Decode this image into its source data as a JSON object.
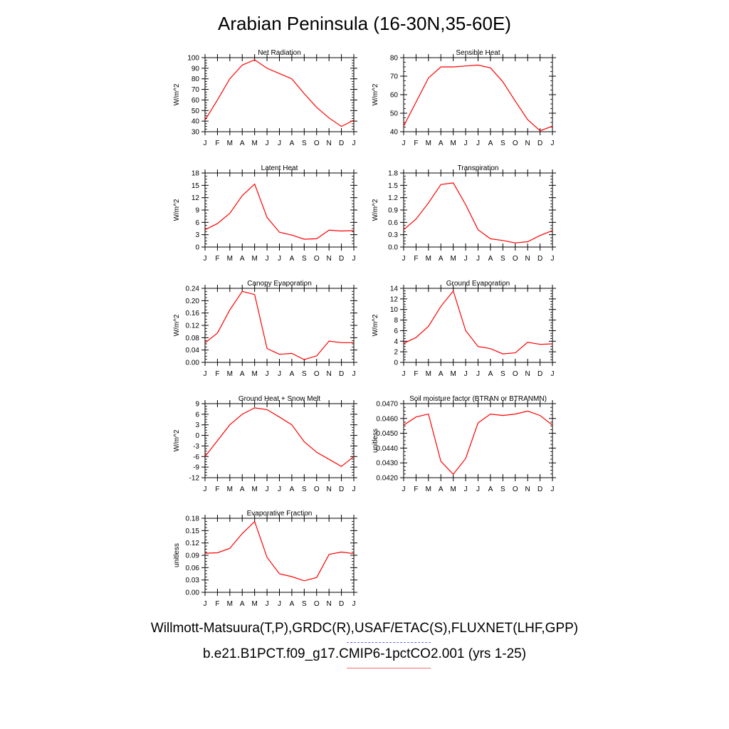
{
  "title": "Arabian Peninsula (16-30N,35-60E)",
  "footer": {
    "observations": "Willmott-Matsuura(T,P),GRDC(R),USAF/ETAC(S),FLUXNET(LHF,GPP)",
    "case": "b.e21.B1PCT.f09_g17.CMIP6-1pctCO2.001 (yrs 1-25)"
  },
  "colors": {
    "line": "#ff0000",
    "obs_legend": "#6a6aff",
    "case_legend": "#ff6a6a"
  },
  "chart_data": [
    {
      "type": "line",
      "title": "Net Radiation",
      "ylabel": "W/m^2",
      "categories": [
        "J",
        "F",
        "M",
        "A",
        "M",
        "J",
        "J",
        "A",
        "S",
        "O",
        "N",
        "D",
        "J"
      ],
      "ylim": [
        30,
        100
      ],
      "yticks": [
        "30",
        "40",
        "50",
        "60",
        "70",
        "80",
        "90",
        "100"
      ],
      "values": [
        41,
        60,
        80,
        93,
        98,
        90,
        85,
        80,
        66,
        53,
        43,
        35,
        41
      ]
    },
    {
      "type": "line",
      "title": "Sensible Heat",
      "ylabel": "W/m^2",
      "categories": [
        "J",
        "F",
        "M",
        "A",
        "M",
        "J",
        "J",
        "A",
        "S",
        "O",
        "N",
        "D",
        "J"
      ],
      "ylim": [
        40,
        80
      ],
      "yticks": [
        "40",
        "50",
        "60",
        "70",
        "80"
      ],
      "values": [
        43,
        56,
        69,
        75,
        75,
        75.5,
        76,
        74.5,
        67,
        56.5,
        46.5,
        40.5,
        43
      ]
    },
    {
      "type": "line",
      "title": "Latent Heat",
      "ylabel": "W/m^2",
      "categories": [
        "J",
        "F",
        "M",
        "A",
        "M",
        "J",
        "J",
        "A",
        "S",
        "O",
        "N",
        "D",
        "J"
      ],
      "ylim": [
        0,
        18
      ],
      "yticks": [
        "0",
        "3",
        "6",
        "9",
        "12",
        "15",
        "18"
      ],
      "values": [
        4.2,
        5.7,
        8.2,
        12.5,
        15.3,
        7.2,
        3.6,
        2.9,
        1.9,
        2.0,
        4.1,
        3.9,
        4.0
      ]
    },
    {
      "type": "line",
      "title": "Transpiration",
      "ylabel": "W/m^2",
      "categories": [
        "J",
        "F",
        "M",
        "A",
        "M",
        "J",
        "J",
        "A",
        "S",
        "O",
        "N",
        "D",
        "J"
      ],
      "ylim": [
        0,
        1.8
      ],
      "yticks": [
        "0.0",
        "0.3",
        "0.6",
        "0.9",
        "1.2",
        "1.5",
        "1.8"
      ],
      "values": [
        0.42,
        0.68,
        1.07,
        1.52,
        1.56,
        1.03,
        0.42,
        0.2,
        0.16,
        0.1,
        0.13,
        0.28,
        0.4
      ]
    },
    {
      "type": "line",
      "title": "Canopy Evaporation",
      "ylabel": "W/m^2",
      "categories": [
        "J",
        "F",
        "M",
        "A",
        "M",
        "J",
        "J",
        "A",
        "S",
        "O",
        "N",
        "D",
        "J"
      ],
      "ylim": [
        0,
        0.24
      ],
      "yticks": [
        "0.00",
        "0.04",
        "0.08",
        "0.12",
        "0.16",
        "0.20",
        "0.24"
      ],
      "values": [
        0.063,
        0.095,
        0.17,
        0.23,
        0.22,
        0.045,
        0.026,
        0.029,
        0.009,
        0.021,
        0.069,
        0.064,
        0.064
      ]
    },
    {
      "type": "line",
      "title": "Ground Evaporation",
      "ylabel": "W/m^2",
      "categories": [
        "J",
        "F",
        "M",
        "A",
        "M",
        "J",
        "J",
        "A",
        "S",
        "O",
        "N",
        "D",
        "J"
      ],
      "ylim": [
        0,
        14
      ],
      "yticks": [
        "0",
        "2",
        "4",
        "6",
        "8",
        "10",
        "12",
        "14"
      ],
      "values": [
        3.6,
        4.7,
        6.8,
        10.6,
        13.5,
        6.0,
        3.0,
        2.6,
        1.6,
        1.8,
        3.8,
        3.4,
        3.5
      ]
    },
    {
      "type": "line",
      "title": "Ground Heat + Snow Melt",
      "ylabel": "W/m^2",
      "categories": [
        "J",
        "F",
        "M",
        "A",
        "M",
        "J",
        "J",
        "A",
        "S",
        "O",
        "N",
        "D",
        "J"
      ],
      "ylim": [
        -12,
        9
      ],
      "yticks": [
        "-12",
        "-9",
        "-6",
        "-3",
        "0",
        "3",
        "6",
        "9"
      ],
      "values": [
        -6,
        -1.5,
        3,
        6,
        7.8,
        7.3,
        5.2,
        3,
        -1.8,
        -4.8,
        -6.8,
        -8.8,
        -6
      ]
    },
    {
      "type": "line",
      "title": "Soil moisture factor (BTRAN or BTRANMN)",
      "ylabel": "unitless",
      "categories": [
        "J",
        "F",
        "M",
        "A",
        "M",
        "J",
        "J",
        "A",
        "S",
        "O",
        "N",
        "D",
        "J"
      ],
      "ylim": [
        0.042,
        0.047
      ],
      "yticks": [
        "0.0420",
        "0.0430",
        "0.0440",
        "0.0450",
        "0.0460",
        "0.0470"
      ],
      "values": [
        0.04555,
        0.0461,
        0.0463,
        0.0431,
        0.04223,
        0.0433,
        0.0457,
        0.0463,
        0.0462,
        0.0463,
        0.0465,
        0.0462,
        0.04555
      ]
    },
    {
      "type": "line",
      "title": "Evaporative Fraction",
      "ylabel": "unitless",
      "categories": [
        "J",
        "F",
        "M",
        "A",
        "M",
        "J",
        "J",
        "A",
        "S",
        "O",
        "N",
        "D",
        "J"
      ],
      "ylim": [
        0,
        0.18
      ],
      "yticks": [
        "0.00",
        "0.03",
        "0.06",
        "0.09",
        "0.12",
        "0.15",
        "0.18"
      ],
      "values": [
        0.095,
        0.096,
        0.107,
        0.143,
        0.172,
        0.085,
        0.045,
        0.038,
        0.028,
        0.036,
        0.092,
        0.098,
        0.094
      ]
    }
  ]
}
